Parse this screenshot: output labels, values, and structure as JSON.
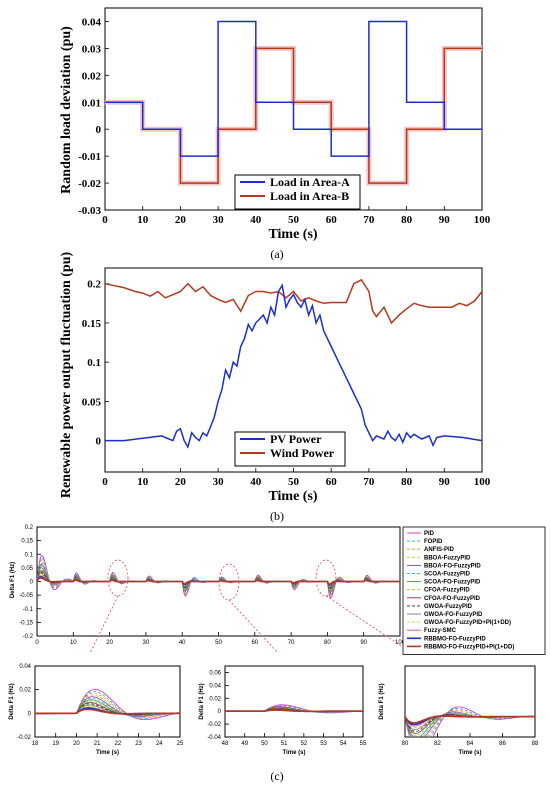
{
  "captions": {
    "a": "(a)",
    "b": "(b)",
    "c": "(c)"
  },
  "colors": {
    "load_a": "#1c2ecf",
    "load_b": "#b33a1e",
    "shade_b": "#f2c6c6",
    "pv": "#1c2ecf",
    "wind": "#b33a1e"
  },
  "chart_data": [
    {
      "type": "line",
      "panel": "a",
      "xlabel": "Time (s)",
      "ylabel": "Random load deviation (pu)",
      "xlim": [
        0,
        100
      ],
      "ylim": [
        -0.03,
        0.045
      ],
      "xticks": [
        0,
        10,
        20,
        30,
        40,
        50,
        60,
        70,
        80,
        90,
        100
      ],
      "yticks": [
        -0.03,
        -0.02,
        -0.01,
        0,
        0.01,
        0.02,
        0.03,
        0.04
      ],
      "ytick_labels": [
        "-0.03",
        "-0.02",
        "-0.01",
        "0",
        "0.01",
        "0.02",
        "0.03",
        "0.04"
      ],
      "legend_position": "bottom-center",
      "series": [
        {
          "name": "Load in Area-A",
          "step": true,
          "x": [
            0,
            10,
            20,
            30,
            40,
            50,
            60,
            70,
            80,
            90,
            100
          ],
          "y": [
            0.01,
            0,
            -0.01,
            0.04,
            0.01,
            0,
            -0.01,
            0.04,
            0.01,
            0,
            -0.01
          ]
        },
        {
          "name": "Load in Area-B",
          "step": true,
          "x": [
            0,
            10,
            20,
            30,
            40,
            50,
            60,
            70,
            80,
            90,
            100
          ],
          "y": [
            0.01,
            0,
            -0.02,
            0,
            0.03,
            0.01,
            0,
            -0.02,
            0,
            0.03,
            0.03
          ]
        }
      ]
    },
    {
      "type": "line",
      "panel": "b",
      "xlabel": "Time (s)",
      "ylabel": "Renewable power output fluctuation (pu)",
      "xlim": [
        0,
        100
      ],
      "ylim": [
        -0.04,
        0.22
      ],
      "xticks": [
        0,
        10,
        20,
        30,
        40,
        50,
        60,
        70,
        80,
        90,
        100
      ],
      "yticks": [
        0,
        0.05,
        0.1,
        0.15,
        0.2
      ],
      "ytick_labels": [
        "0",
        "0.05",
        "0.1",
        "0.15",
        "0.2"
      ],
      "legend_position": "bottom-center",
      "series": [
        {
          "name": "PV Power",
          "x": [
            0,
            5,
            10,
            15,
            18,
            19,
            20,
            21,
            22,
            23,
            24,
            25,
            26,
            27,
            28,
            29,
            30,
            31,
            32,
            33,
            34,
            35,
            36,
            37,
            38,
            39,
            40,
            41,
            42,
            43,
            44,
            45,
            46,
            47,
            48,
            49,
            50,
            51,
            52,
            53,
            54,
            55,
            56,
            57,
            58,
            60,
            62,
            64,
            66,
            68,
            69,
            70,
            71,
            72,
            74,
            75,
            76,
            77,
            78,
            79,
            80,
            81,
            82,
            84,
            86,
            87,
            88,
            90,
            95,
            100
          ],
          "y": [
            0,
            0,
            0.003,
            0.006,
            0.0,
            0.012,
            0.015,
            0.0,
            -0.008,
            0.01,
            0.004,
            0.0,
            0.01,
            0.006,
            0.018,
            0.03,
            0.05,
            0.065,
            0.09,
            0.08,
            0.1,
            0.095,
            0.12,
            0.13,
            0.148,
            0.14,
            0.15,
            0.155,
            0.16,
            0.15,
            0.17,
            0.16,
            0.19,
            0.198,
            0.17,
            0.18,
            0.186,
            0.176,
            0.17,
            0.18,
            0.16,
            0.172,
            0.15,
            0.16,
            0.14,
            0.12,
            0.1,
            0.08,
            0.06,
            0.04,
            0.02,
            0.01,
            0.0,
            0.006,
            0.002,
            0.012,
            0.004,
            0.0,
            0.008,
            -0.002,
            0.01,
            0.004,
            0.008,
            0.002,
            0.006,
            -0.006,
            0.004,
            0.006,
            0.004,
            0.0
          ]
        },
        {
          "name": "Wind Power",
          "x": [
            0,
            2,
            5,
            8,
            10,
            12,
            14,
            16,
            18,
            20,
            22,
            24,
            26,
            28,
            30,
            32,
            34,
            36,
            38,
            40,
            42,
            44,
            46,
            48,
            50,
            52,
            54,
            56,
            58,
            60,
            62,
            64,
            66,
            68,
            70,
            71,
            72,
            74,
            76,
            78,
            80,
            82,
            84,
            86,
            88,
            90,
            92,
            94,
            96,
            98,
            100
          ],
          "y": [
            0.2,
            0.198,
            0.195,
            0.19,
            0.188,
            0.184,
            0.19,
            0.182,
            0.186,
            0.19,
            0.2,
            0.19,
            0.196,
            0.185,
            0.18,
            0.176,
            0.18,
            0.165,
            0.185,
            0.19,
            0.19,
            0.188,
            0.19,
            0.182,
            0.19,
            0.178,
            0.182,
            0.178,
            0.175,
            0.176,
            0.176,
            0.176,
            0.2,
            0.205,
            0.19,
            0.165,
            0.158,
            0.17,
            0.15,
            0.16,
            0.168,
            0.175,
            0.172,
            0.17,
            0.17,
            0.17,
            0.17,
            0.175,
            0.172,
            0.178,
            0.19
          ]
        }
      ]
    },
    {
      "type": "line",
      "panel": "c-main",
      "xlabel": "",
      "ylabel": "Delta F1 (Hz)",
      "xlim": [
        0,
        100
      ],
      "ylim": [
        -0.2,
        0.2
      ],
      "xticks": [
        0,
        10,
        20,
        30,
        40,
        50,
        60,
        70,
        80,
        90,
        100
      ],
      "yticks": [
        -0.2,
        -0.15,
        -0.1,
        -0.05,
        0,
        0.05,
        0.1,
        0.15,
        0.2
      ],
      "ytick_labels": [
        "-0.2",
        "-0.15",
        "-0.1",
        "-0.05",
        "0",
        "0.05",
        "0.1",
        "0.15",
        "0.2"
      ],
      "legend_position": "right (outside)",
      "legend": [
        "PID",
        "FOPID",
        "ANFIS-PID",
        "BBOA-FuzzyPID",
        "BBOA-FO-FuzzyPID",
        "SCOA-FuzzyPID",
        "SCOA-FO-FuzzyPID",
        "CFOA-FuzzyPID",
        "CFOA-FO-FuzzyPID",
        "GWOA-FuzzyPID",
        "GWOA-FO-FuzzyPID",
        "GWOA-FO-FuzzyPID+PI(1+DD)",
        "Fuzzy-SMC",
        "RBBMO-FO-FuzzyPID",
        "RBBMO-FO-FuzzyPID+PI(1+DD)"
      ],
      "legend_colors": [
        "#d12bd1",
        "#23a0d8",
        "#f08a2a",
        "#c8c81e",
        "#7d3fb0",
        "#35b0e8",
        "#3a9a3a",
        "#a3c83a",
        "#8b2f2f",
        "#222222",
        "#7d7d7d",
        "#cfcf1e",
        "#e0409a",
        "#1c2ecf",
        "#b33a1e"
      ],
      "legend_dash": [
        false,
        true,
        true,
        true,
        false,
        true,
        false,
        true,
        false,
        true,
        false,
        true,
        false,
        false,
        false
      ],
      "events": [
        10,
        20,
        30,
        40,
        50,
        60,
        70,
        80,
        90
      ]
    },
    {
      "type": "line",
      "panel": "c-zoom-1",
      "xlabel": "Time (s)",
      "ylabel": "Delta F1 (Hz)",
      "xlim": [
        18,
        25
      ],
      "ylim": [
        -0.02,
        0.04
      ],
      "xticks": [
        18,
        19,
        20,
        21,
        22,
        23,
        24,
        25
      ],
      "yticks": [
        -0.02,
        0,
        0.02,
        0.04
      ],
      "ytick_labels": [
        "-0.02",
        "0",
        "0.02",
        "0.04"
      ]
    },
    {
      "type": "line",
      "panel": "c-zoom-2",
      "xlabel": "Time (s)",
      "ylabel": "Delta F1 (Hz)",
      "xlim": [
        48,
        55
      ],
      "ylim": [
        -0.04,
        0.07
      ],
      "xticks": [
        48,
        49,
        50,
        51,
        52,
        53,
        54,
        55
      ],
      "yticks": [
        -0.04,
        -0.02,
        0,
        0.02,
        0.04,
        0.06
      ],
      "ytick_labels": [
        "-0.04",
        "-0.02",
        "0",
        "0.02",
        "0.04",
        "0.06"
      ]
    },
    {
      "type": "line",
      "panel": "c-zoom-3",
      "xlabel": "Time (s)",
      "ylabel": "Delta F1 (Hz)",
      "xlim": [
        80,
        88
      ],
      "ylim": [
        -0.02,
        0.05
      ],
      "xticks": [
        80,
        82,
        84,
        86,
        88
      ],
      "yticks": [],
      "ytick_labels": []
    }
  ]
}
